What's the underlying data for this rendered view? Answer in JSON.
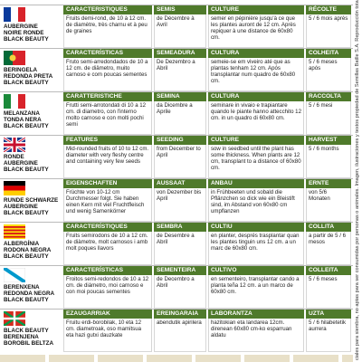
{
  "rows": [
    {
      "name": [
        "AUBERGINE",
        "NOIRE RONDE",
        "BLACK BEAUTY"
      ],
      "headers": [
        "CARACTERISTIQUES",
        "SEMIS",
        "CULTURE",
        "RÉCOLTE"
      ],
      "cells": [
        "Fruits demi-rond, de 10 à 12 cm. de diamètre, très charnu et à peu de graines",
        "de Décembre à Avril",
        "semer en pépinière jusqu'à ce que les plantes auront de 12 cm. Après repiquer à une distance de 60x80 cm.",
        "5 / 6 mois après"
      ]
    },
    {
      "name": [
        "BERINGELA",
        "REDONDA PRETA",
        "BLACK BEAUTY"
      ],
      "headers": [
        "CARACTERÍSTICAS",
        "SEMEADURA",
        "CULTURA",
        "COLHEITA"
      ],
      "cells": [
        "Fruto semi-arredondados de 10 a 12 cm. de diâmetro, muito carnoso e com poucas sementes",
        "De Dezembro a Abril",
        "semeie-se em viveiro até que as plantas tenham 12 cm. Após transplantar num quadro de 60x80 cm.",
        "5 / 6 meses após"
      ]
    },
    {
      "name": [
        "MELANZANA",
        "TONDA NERA",
        "BLACK BEAUTY"
      ],
      "headers": [
        "CARATTERISTICHE",
        "SEMINA",
        "CULTURA",
        "RACCOLTA"
      ],
      "cells": [
        "Frutti semi-arrotondati di 10 a 12 cm. di diametro, con l'interno molto carnoso e con molti pochi semi",
        "da Dicembre a Aprile",
        "seminare in vivaio e trapiantare quando le piante hanno attecchito 12 cm. in un quadro di 60x80 cm.",
        "5 / 6 mesi"
      ]
    },
    {
      "name": [
        "RONDE",
        "AUBERGINE",
        "BLACK BEAUTY"
      ],
      "headers": [
        "FEATURES",
        "SEEDING",
        "CULTURE",
        "HARVEST"
      ],
      "cells": [
        "Mid-rounded fruits of 10 to 12 cm. diameter with very fleshy centre and containing very few seeds",
        "from December to April",
        "sow in seedbed until the plant has some thickness. When plants are 12 cm, transplant to a distance of 60x80 cm.",
        "5 / 6 months"
      ]
    },
    {
      "name": [
        "RUNDE SCHWARZE",
        "AUBERGINE",
        "BLACK BEAUTY"
      ],
      "headers": [
        "EIGENSCHAFTEN",
        "AUSSAAT",
        "ANBAU",
        "ERNTE"
      ],
      "cells": [
        "Früchte von 10-12 cm Durchmesser folgt. Sie haben einen Kern mit viel Fruchtfleisch und wenig Samenkörner",
        "von Dezember bis April",
        "in Frühbeeten und sobald die Pflänzchen so dick wie ein Bleistift sind, im Abstand von 60x80 cm umpflanzen",
        "von 5/6 Monaten"
      ]
    },
    {
      "name": [
        "ALBERGÍNIA",
        "RODONA NEGRA",
        "BLACK BEAUTY"
      ],
      "headers": [
        "CARACTERÍSTIQUES",
        "SEMBRA",
        "CULTIU",
        "COLLITA"
      ],
      "cells": [
        "Fruits semirodons de 10 a 12 cm. de diàmetre, molt carnosos i amb molt poques llavors",
        "de Desembre a Abril",
        "en planter, després trasplantar quan les plantes tinguin uns 12 cm. a un marc de 60x80 cm.",
        "a partir de 5 / 6 mesos"
      ]
    },
    {
      "name": [
        "BERENXENA",
        "REDONDA NEGRA",
        "BLACK BEAUTY"
      ],
      "headers": [
        "CARACTERÍSTICAS",
        "SEMENTEIRA",
        "CULTIVO",
        "COLLEITA"
      ],
      "cells": [
        "Froitos semi-redondos de 10 a 12 cm. de diámetro, moi carnoso e con moi poucas sementes",
        "de Decembro a Abril",
        "en sementeiro, transplantar cando a planta teña 12 cm. a un marco de 60x80 cm.",
        "5 / 6 meses"
      ]
    },
    {
      "name": [
        "BLACK BEAUTY",
        "BERENJENA",
        "BOROBIL BELTZA"
      ],
      "headers": [
        "EZAUGARRIAK",
        "EREINGARAIA",
        "LABORANTZA",
        "UZTA"
      ],
      "cells": [
        "Fruitu erdi-borobilak, 10 eta 12 cm. diametroak, oso mamitsua eta hazi gutxi dauzkate",
        "abendutik apirilera",
        "hazitokian eta landarea 12cm. direnean 60x80 cm-ko esparruan aldatu",
        "5 / 6 hilabetetik aurrera"
      ]
    }
  ],
  "side_text": "ciales para siembra, no aptas para ser consumidas por personas o animales. Imagen, ilustraciones y textos propiedad de Semillas Batlle S.A. Reproducción total o"
}
